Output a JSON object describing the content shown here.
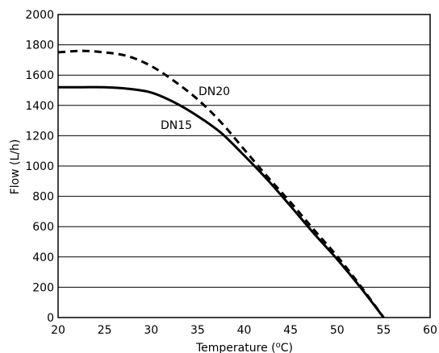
{
  "chart_data": {
    "type": "line",
    "xlabel_main": "Temperature (",
    "xlabel_sup": "o",
    "xlabel_tail": "C)",
    "ylabel": "Flow (L/h)",
    "xlim": [
      20,
      60
    ],
    "ylim": [
      0,
      2000
    ],
    "xticks": [
      20,
      25,
      30,
      35,
      40,
      45,
      50,
      55,
      60
    ],
    "yticks": [
      0,
      200,
      400,
      600,
      800,
      1000,
      1200,
      1400,
      1600,
      1800,
      2000
    ],
    "grid": "horizontal",
    "series": [
      {
        "name": "DN15",
        "style": "solid",
        "x": [
          20,
          22.5,
          25,
          27.5,
          30,
          32.5,
          35,
          37.5,
          40,
          42.5,
          45,
          47.5,
          50,
          52.5,
          55
        ],
        "y": [
          1520,
          1520,
          1520,
          1510,
          1485,
          1420,
          1330,
          1220,
          1070,
          910,
          735,
          555,
          385,
          200,
          0
        ]
      },
      {
        "name": "DN20",
        "style": "dashed",
        "x": [
          20,
          22.5,
          25,
          27.5,
          30,
          32.5,
          35,
          37.5,
          40,
          42.5,
          45,
          47.5,
          50,
          52.5,
          55
        ],
        "y": [
          1750,
          1760,
          1750,
          1725,
          1660,
          1560,
          1440,
          1290,
          1110,
          930,
          760,
          580,
          405,
          210,
          0
        ]
      }
    ]
  }
}
